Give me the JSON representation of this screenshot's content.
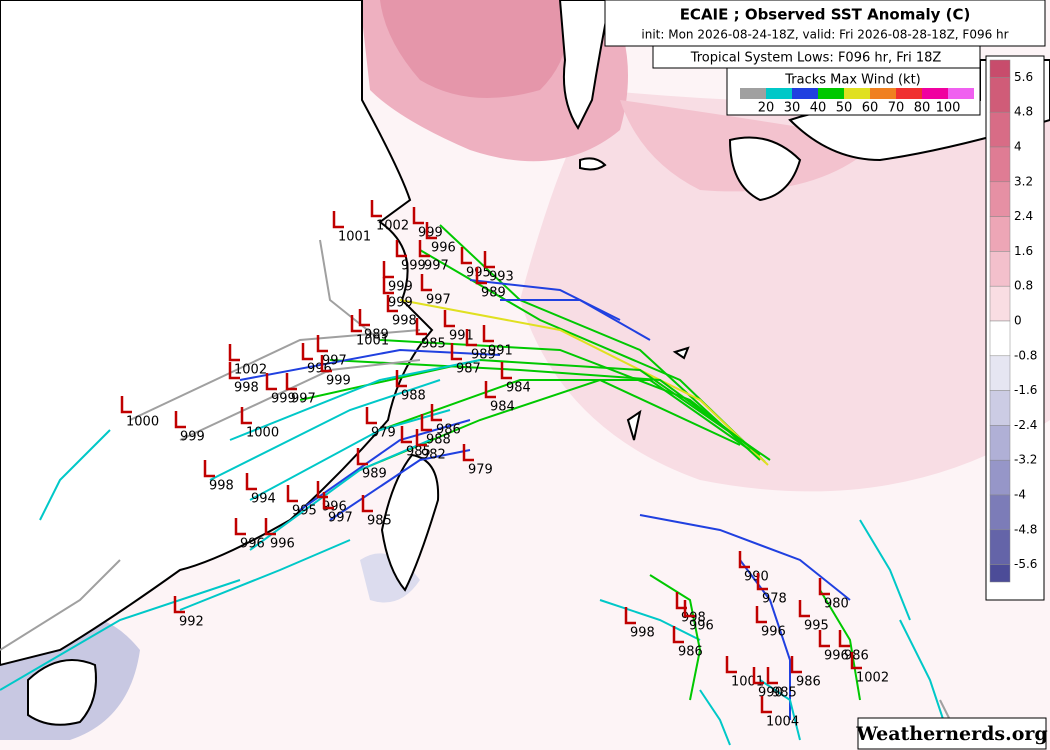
{
  "header": {
    "title": "ECAIE ; Observed SST Anomaly (C)",
    "subtitle": "init: Mon 2026-08-24-18Z,  valid: Fri 2026-08-28-18Z, F096 hr",
    "lows_title": "Tropical System Lows: F096 hr, Fri 18Z"
  },
  "wind_legend": {
    "title": "Tracks Max Wind (kt)",
    "colors": [
      "#a0a0a0",
      "#00c8c8",
      "#2040e0",
      "#00c800",
      "#e0e020",
      "#f08020",
      "#f03030",
      "#f000a0",
      "#f060f0"
    ],
    "labels": [
      20,
      30,
      40,
      50,
      60,
      70,
      80,
      100
    ]
  },
  "colorbar": {
    "lim": [
      -6,
      6
    ],
    "ticks": [
      5.6,
      4.8,
      4,
      3.2,
      2.4,
      1.6,
      0.8,
      0,
      -0.8,
      -1.6,
      -2.4,
      -3.2,
      -4,
      -4.8,
      -5.6
    ],
    "colors": [
      "#c84c6c",
      "#d05c78",
      "#d86c86",
      "#df7c94",
      "#e690a4",
      "#eda6b6",
      "#f3c0cc",
      "#f9dde3",
      "#ffffff",
      "#e6e6f2",
      "#ccccE4",
      "#b0b0d6",
      "#9696c8",
      "#7c7cb8",
      "#6464a8",
      "#4c4c98"
    ]
  },
  "lows": [
    1001,
    1002,
    999,
    996,
    999,
    997,
    995,
    993,
    989,
    999,
    999,
    997,
    998,
    991,
    989,
    1001,
    985,
    987,
    989,
    991,
    1002,
    997,
    996,
    999,
    998,
    999,
    997,
    988,
    984,
    984,
    1000,
    999,
    1000,
    979,
    986,
    988,
    985,
    982,
    979,
    989,
    998,
    994,
    995,
    996,
    997,
    985,
    996,
    996,
    992,
    998,
    998,
    996,
    986,
    990,
    978,
    980,
    996,
    995,
    996,
    986,
    986,
    1002,
    1001,
    990,
    985,
    1004
  ],
  "watermark": "Weathernerds.org"
}
